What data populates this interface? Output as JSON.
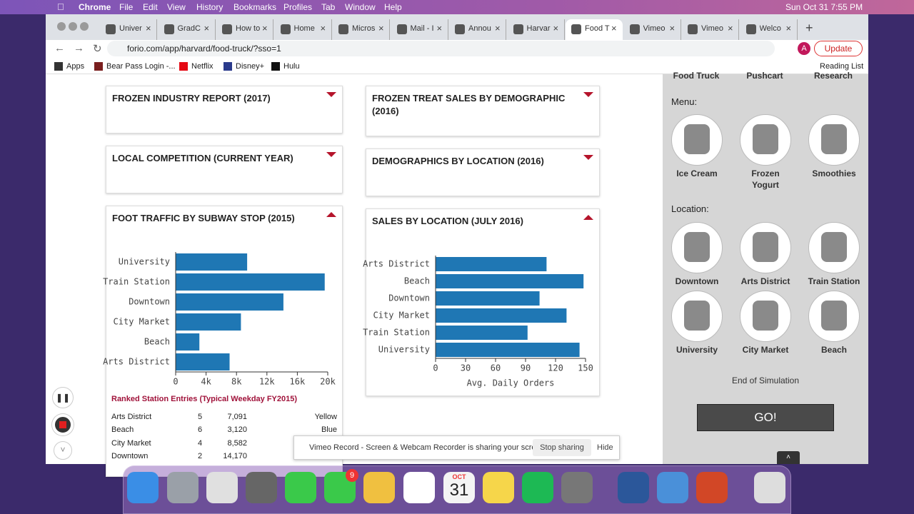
{
  "menubar": {
    "app": "Chrome",
    "menus": [
      "File",
      "Edit",
      "View",
      "History",
      "Bookmarks",
      "Profiles",
      "Tab",
      "Window",
      "Help"
    ],
    "clock": "Sun Oct 31  7:55 PM"
  },
  "tabs": [
    "Univer",
    "GradC",
    "How to",
    "Home",
    "Micros",
    "Mail - I",
    "Annou",
    "Harvar",
    "Food T",
    "Vimeo",
    "Vimeo",
    "Welco"
  ],
  "address": "forio.com/app/harvard/food-truck/?sso=1",
  "update": "Update",
  "bookmarks": [
    "Apps",
    "Bear Pass Login -...",
    "Netflix",
    "Disney+",
    "Hulu"
  ],
  "reading_list": "Reading List",
  "panels": [
    "FROZEN INDUSTRY REPORT (2017)",
    "FROZEN TREAT SALES BY DEMOGRAPHIC (2016)",
    "LOCAL COMPETITION (CURRENT YEAR)",
    "DEMOGRAPHICS BY LOCATION (2016)"
  ],
  "chart_data": [
    {
      "type": "bar",
      "orientation": "horizontal",
      "title": "FOOT TRAFFIC BY SUBWAY STOP (2015)",
      "categories": [
        "University",
        "Train Station",
        "Downtown",
        "City Market",
        "Beach",
        "Arts District"
      ],
      "values": [
        9400,
        19600,
        14170,
        8582,
        3120,
        7091
      ],
      "color": "#1f77b4",
      "xlim": [
        0,
        20000
      ],
      "xticks": [
        0,
        {
          "value": 4000,
          "label": "4k"
        },
        {
          "value": 8000,
          "label": "8k"
        },
        {
          "value": 12000,
          "label": "12k"
        },
        {
          "value": 16000,
          "label": "16k"
        },
        {
          "value": 20000,
          "label": "20k"
        }
      ]
    },
    {
      "type": "bar",
      "orientation": "horizontal",
      "title": "SALES BY LOCATION (JULY 2016)",
      "categories": [
        "Arts District",
        "Beach",
        "Downtown",
        "City Market",
        "Train Station",
        "University"
      ],
      "values": [
        111,
        148,
        104,
        131,
        92,
        144
      ],
      "color": "#1f77b4",
      "xlim": [
        0,
        150
      ],
      "xticks": [
        0,
        30,
        60,
        90,
        120,
        150
      ],
      "xlabel": "Avg. Daily Orders"
    }
  ],
  "table": {
    "title": "Ranked Station Entries (Typical Weekday FY2015)",
    "rows": [
      [
        "Arts District",
        "5",
        "7,091",
        "Yellow"
      ],
      [
        "Beach",
        "6",
        "3,120",
        "Blue"
      ],
      [
        "City Market",
        "4",
        "8,582"
      ],
      [
        "Downtown",
        "2",
        "14,170"
      ]
    ]
  },
  "sidebar": {
    "top_labels": [
      "Food Truck",
      "Pushcart",
      "Research"
    ],
    "menu_label": "Menu:",
    "menu": [
      "Ice Cream",
      "Frozen\nYogurt",
      "Smoothies"
    ],
    "location_label": "Location:",
    "locations": [
      "Downtown",
      "Arts District",
      "Train Station",
      "University",
      "City Market",
      "Beach"
    ],
    "end": "End of Simulation",
    "go": "GO!"
  },
  "share_bar": {
    "message": "Vimeo Record - Screen & Webcam Recorder is sharing your screen.",
    "stop": "Stop sharing",
    "hide": "Hide"
  },
  "dock": {
    "badge": "9",
    "calendar_month": "OCT",
    "calendar_day": "31"
  }
}
